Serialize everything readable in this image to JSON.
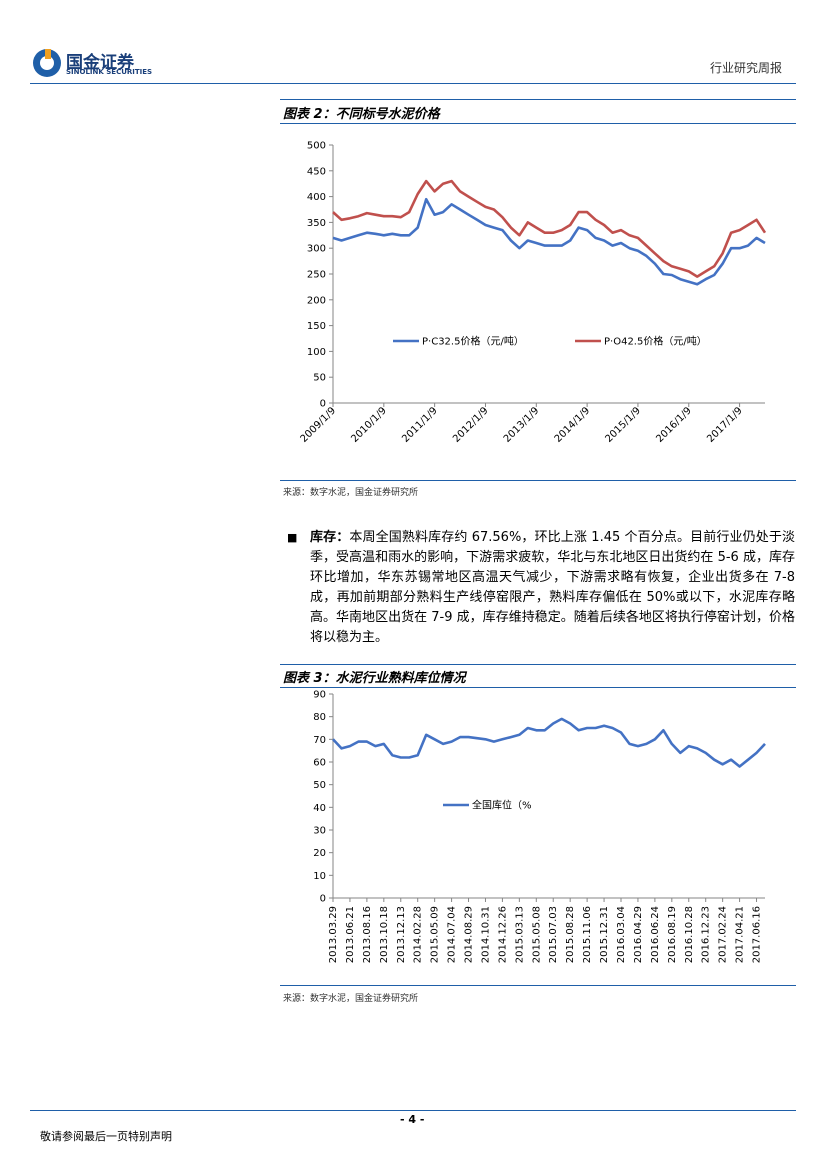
{
  "header": {
    "logo_cn": "国金证券",
    "logo_en": "SINOLINK SECURITIES",
    "report_type": "行业研究周报"
  },
  "figures": [
    {
      "title": "图表 2：不同标号水泥价格",
      "source": "来源：数字水泥，国金证券研究所",
      "chart_data": {
        "type": "line",
        "categories": [
          "2009/1/9",
          null,
          null,
          null,
          null,
          null,
          "2010/1/9",
          null,
          null,
          null,
          null,
          null,
          "2011/1/9",
          null,
          null,
          null,
          null,
          null,
          "2012/1/9",
          null,
          null,
          null,
          null,
          null,
          "2013/1/9",
          null,
          null,
          null,
          null,
          null,
          "2014/1/9",
          null,
          null,
          null,
          null,
          null,
          "2015/1/9",
          null,
          null,
          null,
          null,
          null,
          "2016/1/9",
          null,
          null,
          null,
          null,
          null,
          "2017/1/9",
          null,
          null,
          null
        ],
        "series": [
          {
            "name": "P·C32.5价格（元/吨）",
            "color": "#4472c4",
            "values": [
              320,
              315,
              320,
              325,
              330,
              328,
              325,
              328,
              325,
              325,
              340,
              395,
              365,
              370,
              385,
              375,
              365,
              355,
              345,
              340,
              335,
              315,
              300,
              315,
              310,
              305,
              305,
              305,
              315,
              340,
              335,
              320,
              315,
              305,
              310,
              300,
              295,
              285,
              270,
              250,
              248,
              240,
              235,
              230,
              240,
              248,
              270,
              300,
              300,
              305,
              320,
              310
            ]
          },
          {
            "name": "P·O42.5价格（元/吨）",
            "color": "#c0504d",
            "values": [
              370,
              355,
              358,
              362,
              368,
              365,
              362,
              362,
              360,
              370,
              405,
              430,
              410,
              425,
              430,
              410,
              400,
              390,
              380,
              375,
              360,
              340,
              325,
              350,
              340,
              330,
              330,
              335,
              345,
              370,
              370,
              355,
              345,
              330,
              335,
              325,
              320,
              305,
              290,
              275,
              265,
              260,
              255,
              245,
              255,
              265,
              290,
              330,
              335,
              345,
              355,
              330
            ]
          }
        ],
        "ylim": [
          0,
          500
        ],
        "yticks": [
          0,
          50,
          100,
          150,
          200,
          250,
          300,
          350,
          400,
          450,
          500
        ]
      }
    },
    {
      "title": "图表 3：水泥行业熟料库位情况",
      "source": "来源：数字水泥，国金证券研究所",
      "chart_data": {
        "type": "line",
        "categories": [
          "2013.03.29",
          null,
          "2013.06.21",
          null,
          "2013.08.16",
          null,
          "2013.10.18",
          null,
          "2013.12.13",
          null,
          "2014.02.28",
          null,
          "2015.05.09",
          null,
          "2014.07.04",
          null,
          "2014.08.29",
          null,
          "2014.10.31",
          null,
          "2014.12.26",
          null,
          "2015.03.13",
          null,
          "2015.05.08",
          null,
          "2015.07.03",
          null,
          "2015.08.28",
          null,
          "2015.11.06",
          null,
          "2015.12.31",
          null,
          "2016.03.04",
          null,
          "2016.04.29",
          null,
          "2016.06.24",
          null,
          "2016.08.19",
          null,
          "2016.10.28",
          null,
          "2016.12.23",
          null,
          "2017.02.24",
          null,
          "2017.04.21",
          null,
          "2017.06.16",
          null
        ],
        "series": [
          {
            "name": "全国库位（%",
            "color": "#4472c4",
            "values": [
              70,
              66,
              67,
              69,
              69,
              67,
              68,
              63,
              62,
              62,
              63,
              72,
              70,
              68,
              69,
              71,
              71,
              70.5,
              70,
              69,
              70,
              71,
              72,
              75,
              74,
              74,
              77,
              79,
              77,
              74,
              75,
              75,
              76,
              75,
              73,
              68,
              67,
              68,
              70,
              74,
              68,
              64,
              67,
              66,
              64,
              61,
              59,
              61,
              58,
              61,
              64,
              68
            ]
          }
        ],
        "ylim": [
          0,
          90
        ],
        "yticks": [
          0,
          10,
          20,
          30,
          40,
          50,
          60,
          70,
          80,
          90
        ]
      }
    }
  ],
  "paragraph": {
    "label": "库存：",
    "text": "本周全国熟料库存约 67.56%，环比上涨 1.45 个百分点。目前行业仍处于淡季，受高温和雨水的影响，下游需求疲软，华北与东北地区日出货约在 5-6 成，库存环比增加，华东苏锡常地区高温天气减少，下游需求略有恢复，企业出货多在 7-8 成，再加前期部分熟料生产线停窑限产，熟料库存偏低在 50%或以下，水泥库存略高。华南地区出货在 7-9 成，库存维持稳定。随着后续各地区将执行停窑计划，价格将以稳为主。"
  },
  "footer": {
    "page": "- 4 -",
    "disclaimer": "敬请参阅最后一页特别声明"
  }
}
